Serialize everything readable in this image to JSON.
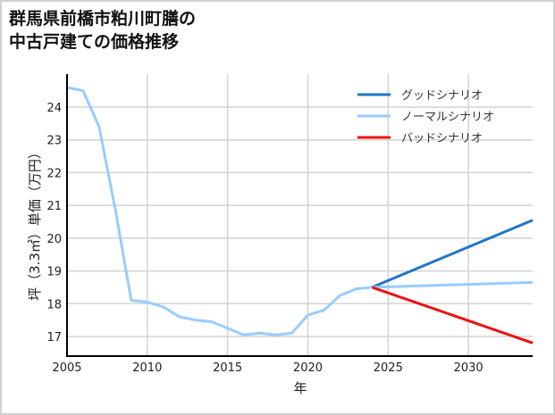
{
  "title": {
    "line1": "群馬県前橋市粕川町膳の",
    "line2": "中古戸建ての価格推移"
  },
  "chart_data": {
    "type": "line",
    "title": "群馬県前橋市粕川町膳の中古戸建ての価格推移",
    "xlabel": "年",
    "ylabel": "坪（3.3㎡）単価（万円）",
    "xlim": [
      2005,
      2034
    ],
    "ylim": [
      16.4,
      25.0
    ],
    "x_ticks": [
      2005,
      2010,
      2015,
      2020,
      2025,
      2030
    ],
    "y_ticks": [
      17,
      18,
      19,
      20,
      21,
      22,
      23,
      24
    ],
    "grid": true,
    "legend_position": "upper right",
    "series": [
      {
        "name": "ノーマルシナリオ",
        "role": "historical",
        "color": "#99ccff",
        "x": [
          2005,
          2006,
          2007,
          2008,
          2009,
          2010,
          2011,
          2012,
          2013,
          2014,
          2015,
          2016,
          2017,
          2018,
          2019,
          2020,
          2021,
          2022,
          2023,
          2024
        ],
        "values": [
          24.6,
          24.5,
          23.4,
          20.9,
          18.1,
          18.05,
          17.9,
          17.6,
          17.5,
          17.45,
          17.25,
          17.05,
          17.1,
          17.05,
          17.1,
          17.65,
          17.8,
          18.25,
          18.45,
          18.5
        ]
      },
      {
        "name": "グッドシナリオ",
        "color": "#1f77c8",
        "x": [
          2024,
          2034
        ],
        "values": [
          18.5,
          20.55
        ]
      },
      {
        "name": "ノーマルシナリオ",
        "color": "#99ccff",
        "x": [
          2024,
          2034
        ],
        "values": [
          18.5,
          18.65
        ]
      },
      {
        "name": "バッドシナリオ",
        "color": "#ee1111",
        "x": [
          2024,
          2034
        ],
        "values": [
          18.5,
          16.8
        ]
      }
    ],
    "legend": [
      {
        "label": "グッドシナリオ",
        "color": "#1f77c8"
      },
      {
        "label": "ノーマルシナリオ",
        "color": "#99ccff"
      },
      {
        "label": "バッドシナリオ",
        "color": "#ee1111"
      }
    ]
  },
  "colors": {
    "grid": "#d3d3d3",
    "axis": "#000000",
    "border": "#d0d0d0"
  }
}
